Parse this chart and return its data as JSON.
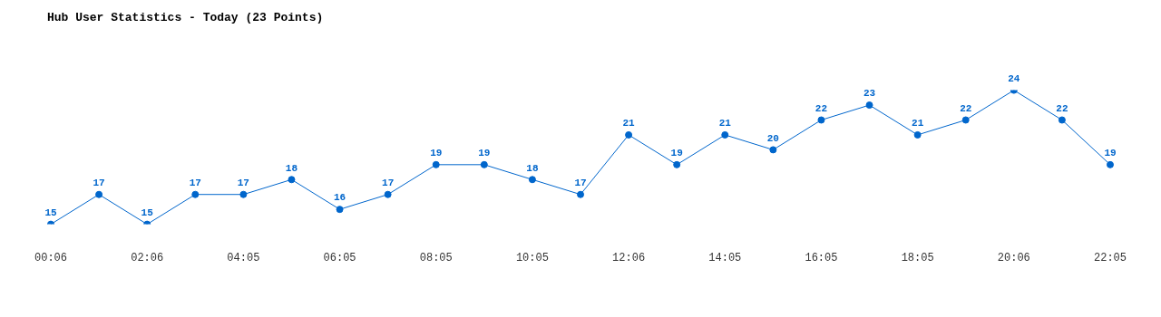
{
  "chart_data": {
    "type": "line",
    "title": "Hub User Statistics - Today (23 Points)",
    "categories": [
      "00:06",
      null,
      "02:06",
      null,
      "04:05",
      null,
      "06:05",
      null,
      "08:05",
      null,
      "10:05",
      null,
      "12:06",
      null,
      "14:05",
      null,
      "16:05",
      null,
      "18:05",
      null,
      "20:06",
      null,
      "22:05"
    ],
    "series": [
      {
        "color": "#0066cc",
        "values": [
          15,
          17,
          15,
          17,
          17,
          18,
          16,
          17,
          19,
          19,
          18,
          17,
          21,
          19,
          21,
          20,
          22,
          23,
          21,
          22,
          24,
          22,
          19
        ]
      }
    ],
    "data_labels": true,
    "marker": "circle",
    "line_style": "solid",
    "grid": false,
    "tick_labels": "x"
  }
}
